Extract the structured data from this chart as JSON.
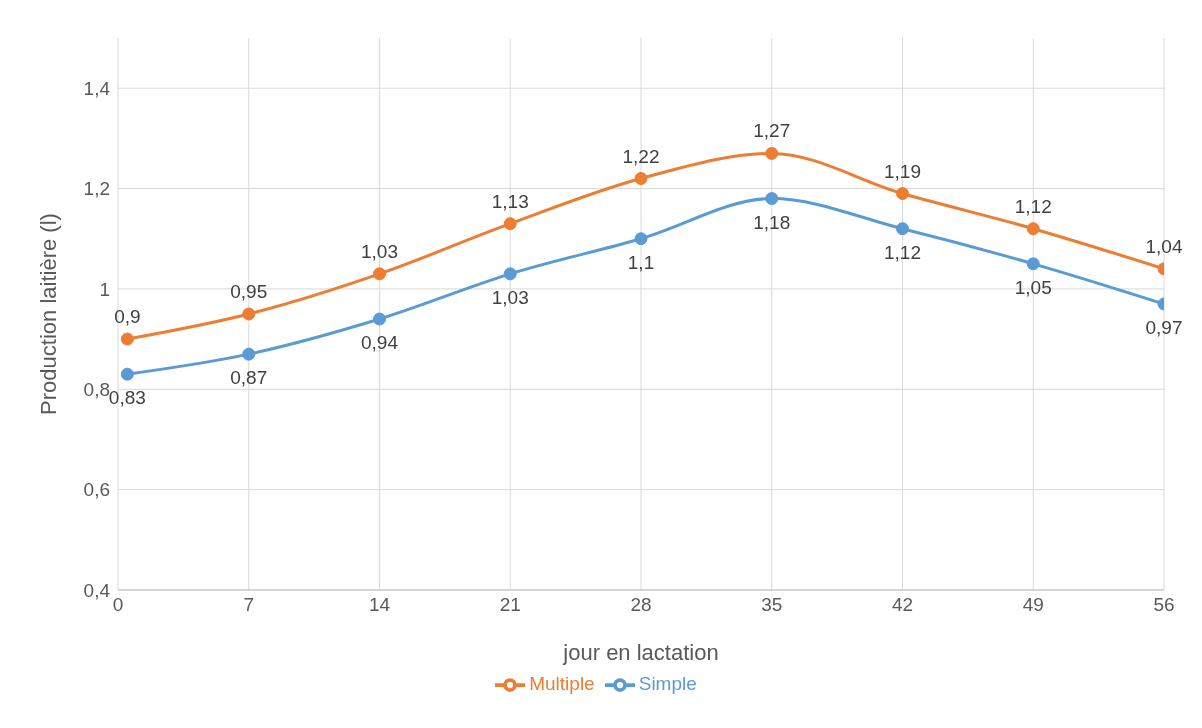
{
  "chart_data": {
    "type": "line",
    "xlabel": "jour en lactation",
    "ylabel": "Production laitière (l)",
    "x": [
      0.5,
      7,
      14,
      21,
      28,
      35,
      42,
      49,
      56
    ],
    "series": [
      {
        "name": "Simple",
        "color": "#5b9bd5",
        "values": [
          0.83,
          0.87,
          0.94,
          1.03,
          1.1,
          1.18,
          1.12,
          1.05,
          0.97
        ],
        "value_labels": [
          "0,83",
          "0,87",
          "0,94",
          "1,03",
          "1,1",
          "1,18",
          "1,12",
          "1,05",
          "0,97"
        ]
      },
      {
        "name": "Multiple",
        "color": "#ed7d31",
        "values": [
          0.9,
          0.95,
          1.03,
          1.13,
          1.22,
          1.27,
          1.19,
          1.12,
          1.04
        ],
        "value_labels": [
          "0,9",
          "0,95",
          "1,03",
          "1,13",
          "1,22",
          "1,27",
          "1,19",
          "1,12",
          "1,04"
        ]
      }
    ],
    "xlim": [
      0,
      56
    ],
    "xticks": [
      0,
      7,
      14,
      21,
      28,
      35,
      42,
      49,
      56
    ],
    "ylim": [
      0.4,
      1.5
    ],
    "yticks": [
      {
        "value": 0.4,
        "label": "0,4"
      },
      {
        "value": 0.6,
        "label": "0,6"
      },
      {
        "value": 0.8,
        "label": "0,8"
      },
      {
        "value": 1,
        "label": "1"
      },
      {
        "value": 1.2,
        "label": "1,2"
      },
      {
        "value": 1.4,
        "label": "1,4"
      }
    ],
    "grid": true,
    "legend": "bottom",
    "marker": "circle",
    "line_style": "solid"
  }
}
